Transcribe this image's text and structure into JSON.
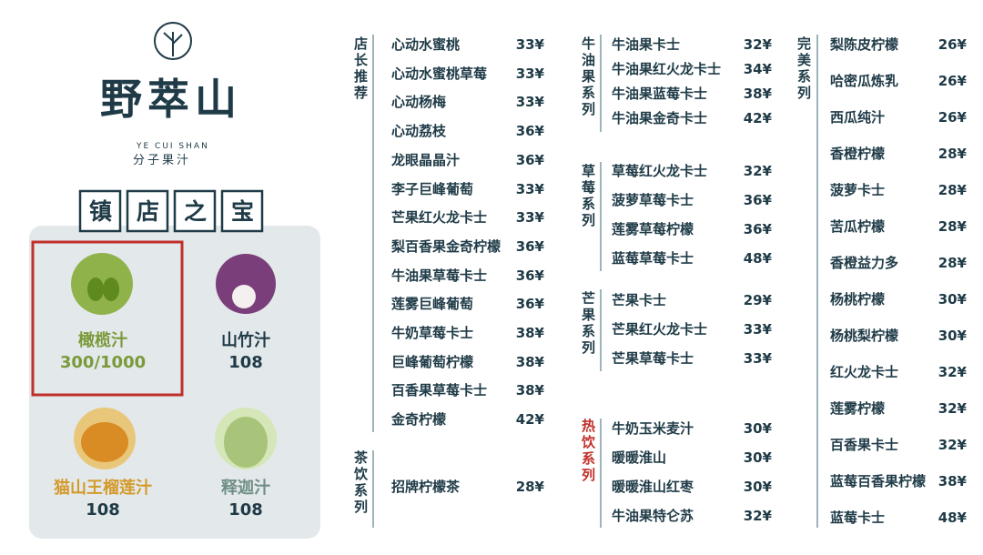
{
  "brand": {
    "name": "野萃山",
    "romanized": "YE CUI SHAN",
    "subtitle": "分子果汁"
  },
  "featured": {
    "title": "镇店之宝",
    "items": [
      {
        "name": "橄榄汁",
        "price": "300/1000"
      },
      {
        "name": "山竹汁",
        "price": "108"
      },
      {
        "name": "猫山王榴莲汁",
        "price": "108"
      },
      {
        "name": "释迦汁",
        "price": "108"
      }
    ]
  },
  "sections": [
    {
      "name": "店长推荐",
      "items": [
        {
          "name": "心动水蜜桃",
          "price": "33¥"
        },
        {
          "name": "心动水蜜桃草莓",
          "price": "33¥"
        },
        {
          "name": "心动杨梅",
          "price": "33¥"
        },
        {
          "name": "心动荔枝",
          "price": "36¥"
        },
        {
          "name": "龙眼晶晶汁",
          "price": "36¥"
        },
        {
          "name": "李子巨峰葡萄",
          "price": "33¥"
        },
        {
          "name": "芒果红火龙卡士",
          "price": "33¥"
        },
        {
          "name": "梨百香果金奇柠檬",
          "price": "36¥"
        },
        {
          "name": "牛油果草莓卡士",
          "price": "36¥"
        },
        {
          "name": "莲雾巨峰葡萄",
          "price": "36¥"
        },
        {
          "name": "牛奶草莓卡士",
          "price": "38¥"
        },
        {
          "name": "巨峰葡萄柠檬",
          "price": "38¥"
        },
        {
          "name": "百香果草莓卡士",
          "price": "38¥"
        },
        {
          "name": "金奇柠檬",
          "price": "42¥"
        }
      ]
    },
    {
      "name": "茶饮系列",
      "items": [
        {
          "name": "招牌柠檬茶",
          "price": "28¥"
        }
      ]
    },
    {
      "name": "牛油果系列",
      "items": [
        {
          "name": "牛油果卡士",
          "price": "32¥"
        },
        {
          "name": "牛油果红火龙卡士",
          "price": "34¥"
        },
        {
          "name": "牛油果蓝莓卡士",
          "price": "38¥"
        },
        {
          "name": "牛油果金奇卡士",
          "price": "42¥"
        }
      ]
    },
    {
      "name": "草莓系列",
      "items": [
        {
          "name": "草莓红火龙卡士",
          "price": "32¥"
        },
        {
          "name": "菠萝草莓卡士",
          "price": "36¥"
        },
        {
          "name": "莲雾草莓柠檬",
          "price": "36¥"
        },
        {
          "name": "蓝莓草莓卡士",
          "price": "48¥"
        }
      ]
    },
    {
      "name": "芒果系列",
      "items": [
        {
          "name": "芒果卡士",
          "price": "29¥"
        },
        {
          "name": "芒果红火龙卡士",
          "price": "33¥"
        },
        {
          "name": "芒果草莓卡士",
          "price": "33¥"
        }
      ]
    },
    {
      "name": "热饮系列",
      "items": [
        {
          "name": "牛奶玉米麦汁",
          "price": "30¥"
        },
        {
          "name": "暖暖淮山",
          "price": "30¥"
        },
        {
          "name": "暖暖淮山红枣",
          "price": "30¥"
        },
        {
          "name": "牛油果特仑苏",
          "price": "32¥"
        }
      ]
    },
    {
      "name": "完美系列",
      "items": [
        {
          "name": "梨陈皮柠檬",
          "price": "26¥"
        },
        {
          "name": "哈密瓜炼乳",
          "price": "26¥"
        },
        {
          "name": "西瓜纯汁",
          "price": "26¥"
        },
        {
          "name": "香橙柠檬",
          "price": "28¥"
        },
        {
          "name": "菠萝卡士",
          "price": "28¥"
        },
        {
          "name": "苦瓜柠檬",
          "price": "28¥"
        },
        {
          "name": "香橙益力多",
          "price": "28¥"
        },
        {
          "name": "杨桃柠檬",
          "price": "30¥"
        },
        {
          "name": "杨桃梨柠檬",
          "price": "30¥"
        },
        {
          "name": "红火龙卡士",
          "price": "32¥"
        },
        {
          "name": "莲雾柠檬",
          "price": "32¥"
        },
        {
          "name": "百香果卡士",
          "price": "32¥"
        },
        {
          "name": "蓝莓百香果柠檬",
          "price": "38¥"
        },
        {
          "name": "蓝莓卡士",
          "price": "48¥"
        }
      ]
    }
  ]
}
